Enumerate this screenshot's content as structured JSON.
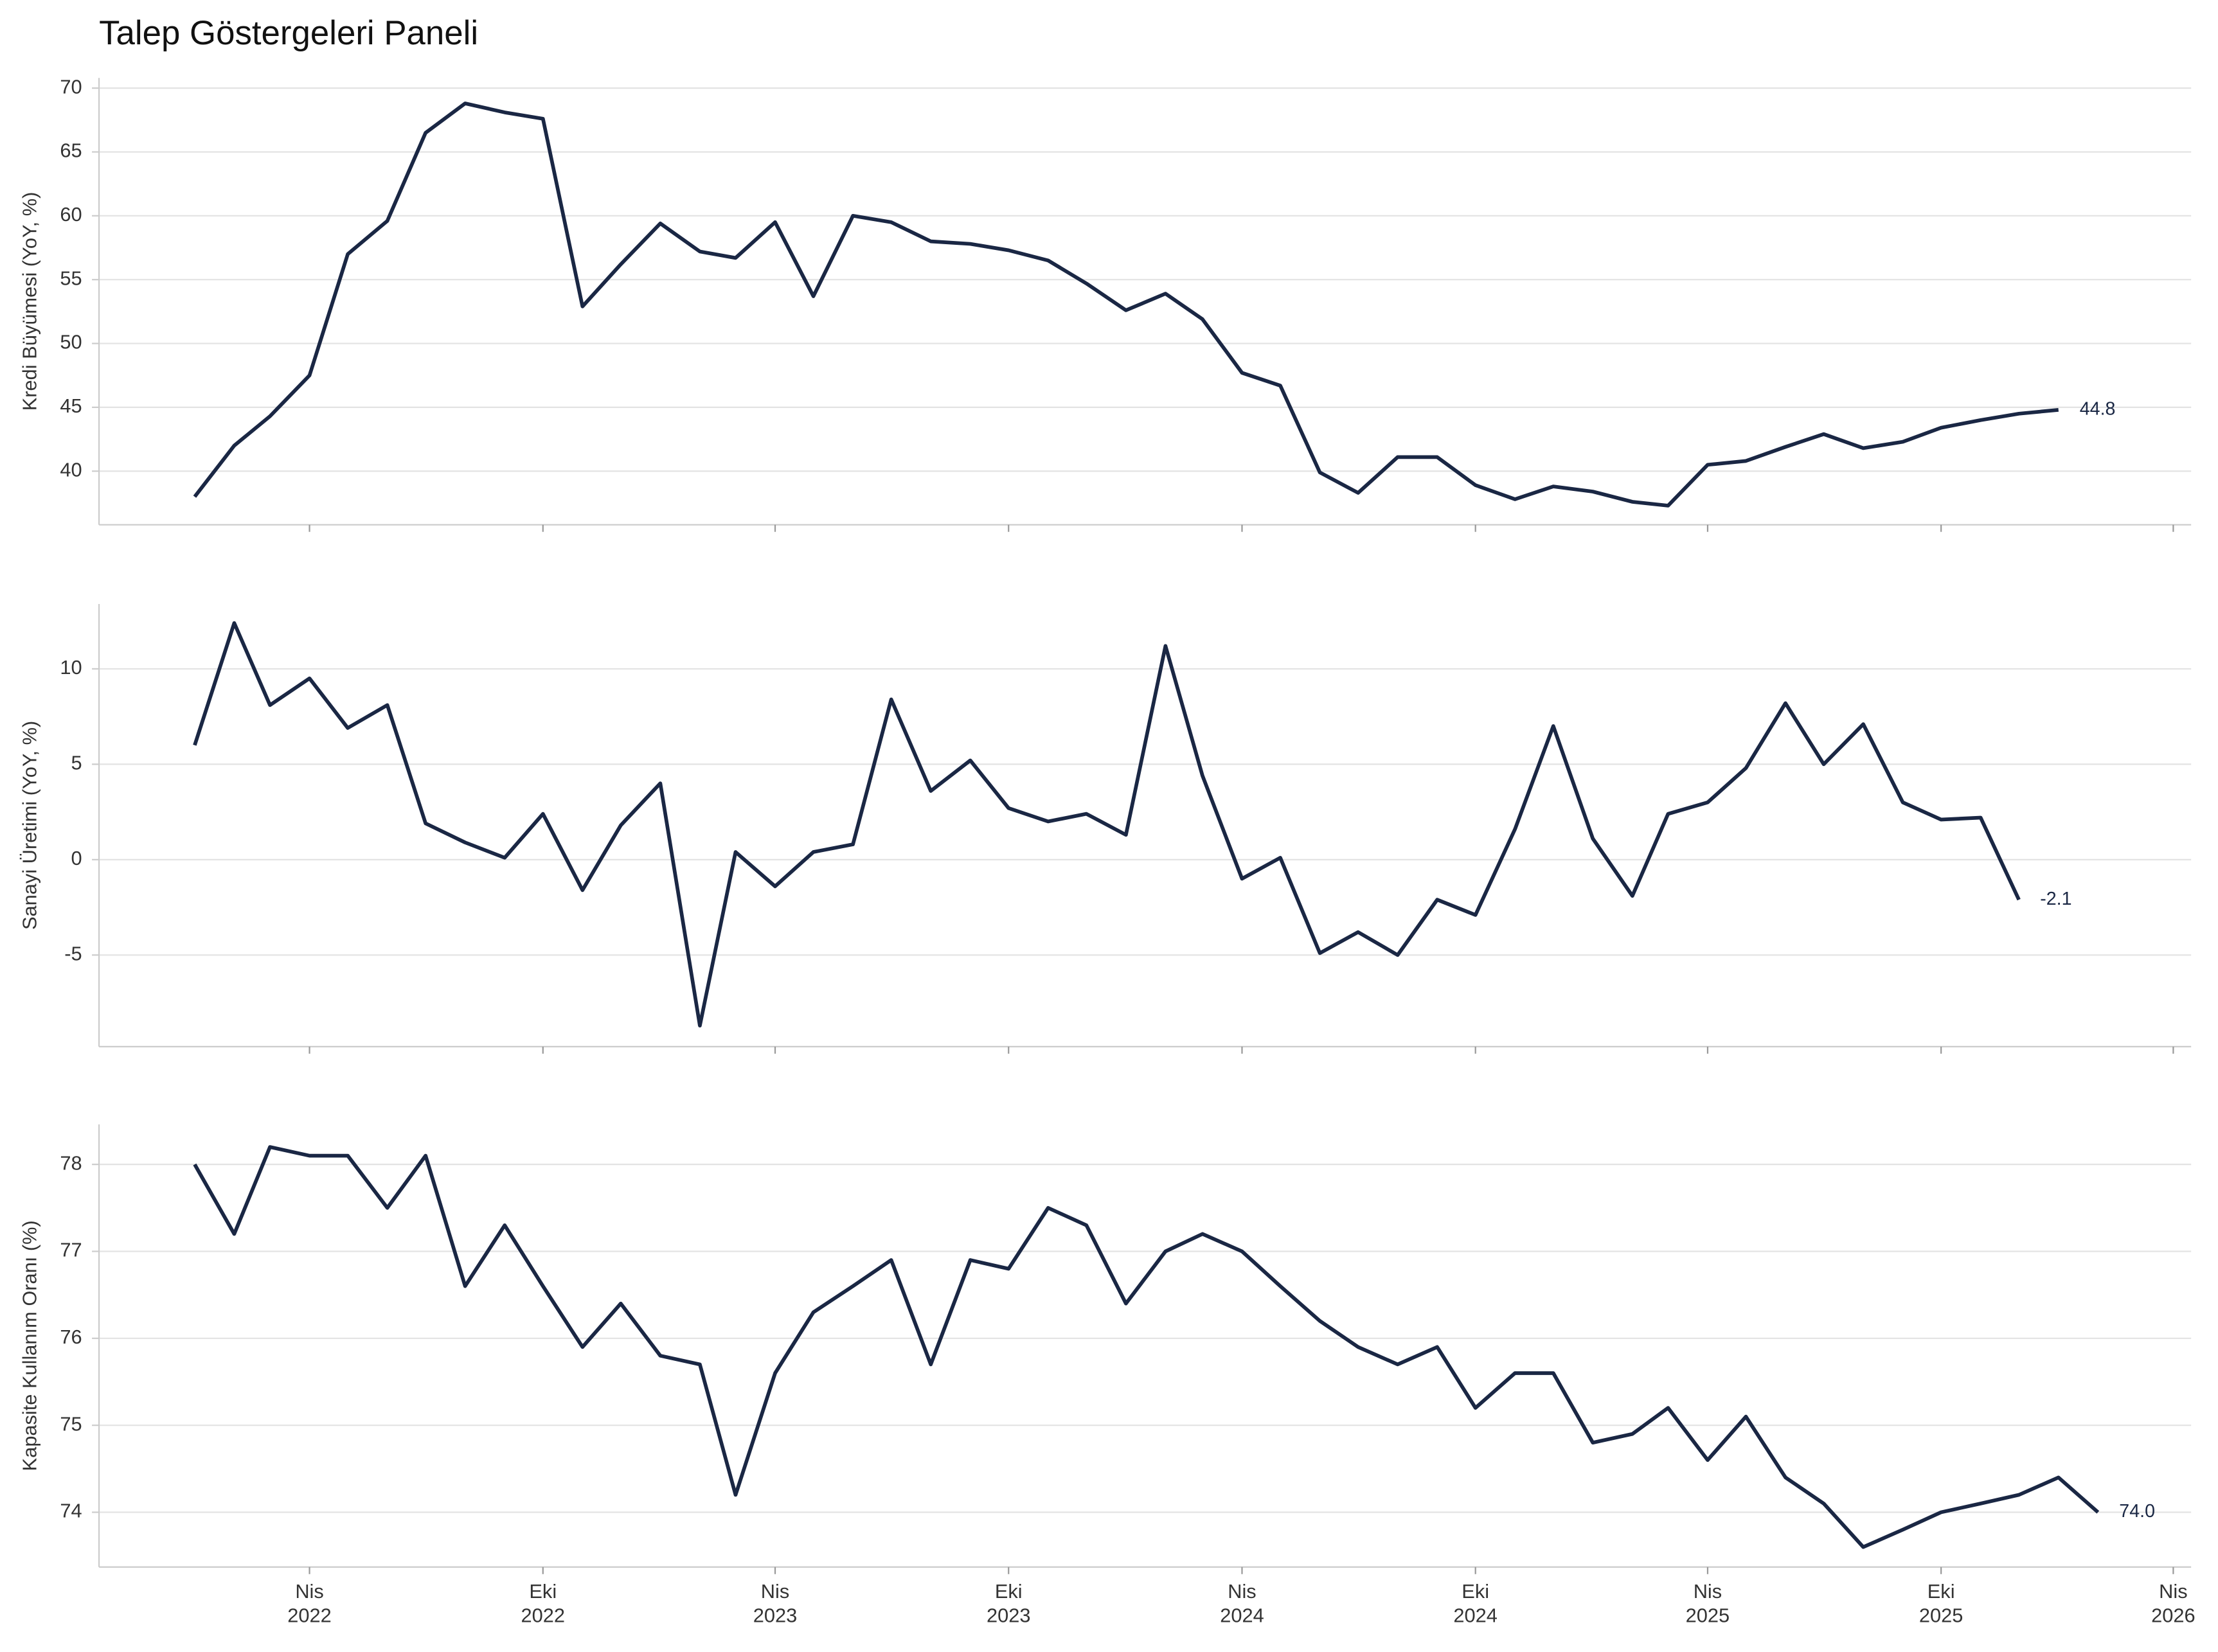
{
  "title": "Talep Göstergeleri Paneli",
  "chart_data": [
    {
      "type": "line",
      "ylabel": "Kredi Büyümesi (YoY, %)",
      "color": "#1a2744",
      "grid": true,
      "xlim": [
        "2021-10-18",
        "2026-04-15"
      ],
      "ylim": [
        35.8,
        70.8
      ],
      "yticks": [
        40,
        45,
        50,
        55,
        60,
        65,
        70
      ],
      "x": [
        "2022-01",
        "2022-02",
        "2022-03",
        "2022-04",
        "2022-05",
        "2022-06",
        "2022-07",
        "2022-08",
        "2022-09",
        "2022-10",
        "2022-11",
        "2022-12",
        "2023-01",
        "2023-02",
        "2023-03",
        "2023-04",
        "2023-05",
        "2023-06",
        "2023-07",
        "2023-08",
        "2023-09",
        "2023-10",
        "2023-11",
        "2023-12",
        "2024-01",
        "2024-02",
        "2024-03",
        "2024-04",
        "2024-05",
        "2024-06",
        "2024-07",
        "2024-08",
        "2024-09",
        "2024-10",
        "2024-11",
        "2024-12",
        "2025-01",
        "2025-02",
        "2025-03",
        "2025-04",
        "2025-05",
        "2025-06",
        "2025-07",
        "2025-08",
        "2025-09",
        "2025-10",
        "2025-11",
        "2025-12",
        "2026-01"
      ],
      "values": [
        38.0,
        42.0,
        44.3,
        47.5,
        57.0,
        59.6,
        66.5,
        68.8,
        68.1,
        67.6,
        52.9,
        56.2,
        59.4,
        57.2,
        56.7,
        59.5,
        53.7,
        60.0,
        59.5,
        58.0,
        57.8,
        57.3,
        56.5,
        54.7,
        52.6,
        53.9,
        51.9,
        47.7,
        46.7,
        39.9,
        38.3,
        41.1,
        41.1,
        38.9,
        37.8,
        38.8,
        38.4,
        37.6,
        37.3,
        40.5,
        40.8,
        41.9,
        42.9,
        41.8,
        42.3,
        43.4,
        44.0,
        44.5,
        44.8
      ],
      "value_labels": [
        null,
        null,
        null,
        null,
        null,
        null,
        null,
        null,
        null,
        null,
        null,
        null,
        null,
        null,
        null,
        null,
        null,
        null,
        null,
        null,
        null,
        null,
        null,
        null,
        null,
        null,
        null,
        null,
        null,
        null,
        null,
        null,
        null,
        null,
        null,
        null,
        null,
        null,
        null,
        null,
        null,
        null,
        null,
        null,
        null,
        null,
        null,
        null,
        "44.8"
      ]
    },
    {
      "type": "line",
      "ylabel": "Sanayi Üretimi (YoY, %)",
      "color": "#1a2744",
      "grid": true,
      "xlim": [
        "2021-10-18",
        "2026-04-15"
      ],
      "ylim": [
        -9.8,
        13.4
      ],
      "yticks": [
        -5,
        0,
        5,
        10
      ],
      "x": [
        "2022-01",
        "2022-02",
        "2022-03",
        "2022-04",
        "2022-05",
        "2022-06",
        "2022-07",
        "2022-08",
        "2022-09",
        "2022-10",
        "2022-11",
        "2022-12",
        "2023-01",
        "2023-02",
        "2023-03",
        "2023-04",
        "2023-05",
        "2023-06",
        "2023-07",
        "2023-08",
        "2023-09",
        "2023-10",
        "2023-11",
        "2023-12",
        "2024-01",
        "2024-02",
        "2024-03",
        "2024-04",
        "2024-05",
        "2024-06",
        "2024-07",
        "2024-08",
        "2024-09",
        "2024-10",
        "2024-11",
        "2024-12",
        "2025-01",
        "2025-02",
        "2025-03",
        "2025-04",
        "2025-05",
        "2025-06",
        "2025-07",
        "2025-08",
        "2025-09",
        "2025-10",
        "2025-11",
        "2025-12"
      ],
      "values": [
        6.0,
        12.4,
        8.1,
        9.5,
        6.9,
        8.1,
        1.9,
        0.9,
        0.1,
        2.4,
        -1.6,
        1.8,
        4.0,
        -8.7,
        0.4,
        -1.4,
        0.4,
        0.8,
        8.4,
        3.6,
        5.2,
        2.7,
        2.0,
        2.4,
        1.3,
        11.2,
        4.4,
        -1.0,
        0.1,
        -4.9,
        -3.8,
        -5.0,
        -2.1,
        -2.9,
        1.6,
        7.0,
        1.1,
        -1.9,
        2.4,
        3.0,
        4.8,
        8.2,
        5.0,
        7.1,
        3.0,
        2.1,
        2.2,
        -2.1
      ],
      "value_labels": [
        null,
        null,
        null,
        null,
        null,
        null,
        null,
        null,
        null,
        null,
        null,
        null,
        null,
        null,
        null,
        null,
        null,
        null,
        null,
        null,
        null,
        null,
        null,
        null,
        null,
        null,
        null,
        null,
        null,
        null,
        null,
        null,
        null,
        null,
        null,
        null,
        null,
        null,
        null,
        null,
        null,
        null,
        null,
        null,
        null,
        null,
        null,
        "-2.1"
      ]
    },
    {
      "type": "line",
      "ylabel": "Kapasite Kullanım Oranı (%)",
      "color": "#1a2744",
      "grid": true,
      "xlim": [
        "2021-10-18",
        "2026-04-15"
      ],
      "ylim": [
        73.37,
        78.46
      ],
      "yticks": [
        74,
        75,
        76,
        77,
        78
      ],
      "xticks": [
        {
          "value": "2022-04",
          "label": "Nis 2022"
        },
        {
          "value": "2022-10",
          "label": "Eki 2022"
        },
        {
          "value": "2023-04",
          "label": "Nis 2023"
        },
        {
          "value": "2023-10",
          "label": "Eki 2023"
        },
        {
          "value": "2024-04",
          "label": "Nis 2024"
        },
        {
          "value": "2024-10",
          "label": "Eki 2024"
        },
        {
          "value": "2025-04",
          "label": "Nis 2025"
        },
        {
          "value": "2025-10",
          "label": "Eki 2025"
        },
        {
          "value": "2026-04",
          "label": "Nis 2026"
        }
      ],
      "x": [
        "2022-01",
        "2022-02",
        "2022-03",
        "2022-04",
        "2022-05",
        "2022-06",
        "2022-07",
        "2022-08",
        "2022-09",
        "2022-10",
        "2022-11",
        "2022-12",
        "2023-01",
        "2023-02",
        "2023-03",
        "2023-04",
        "2023-05",
        "2023-06",
        "2023-07",
        "2023-08",
        "2023-09",
        "2023-10",
        "2023-11",
        "2023-12",
        "2024-01",
        "2024-02",
        "2024-03",
        "2024-04",
        "2024-05",
        "2024-06",
        "2024-07",
        "2024-08",
        "2024-09",
        "2024-10",
        "2024-11",
        "2024-12",
        "2025-01",
        "2025-02",
        "2025-03",
        "2025-04",
        "2025-05",
        "2025-06",
        "2025-07",
        "2025-08",
        "2025-09",
        "2025-10",
        "2025-11",
        "2025-12",
        "2026-01",
        "2026-02"
      ],
      "values": [
        78.0,
        77.2,
        78.2,
        78.1,
        78.1,
        77.5,
        78.1,
        76.6,
        77.3,
        76.6,
        75.9,
        76.4,
        75.8,
        75.7,
        74.2,
        75.6,
        76.3,
        76.6,
        76.9,
        75.7,
        76.9,
        76.8,
        77.5,
        77.3,
        76.4,
        77.0,
        77.2,
        77.0,
        76.6,
        76.2,
        75.9,
        75.7,
        75.9,
        75.2,
        75.6,
        75.6,
        74.8,
        74.9,
        75.2,
        74.6,
        75.1,
        74.4,
        74.1,
        73.6,
        73.8,
        74.0,
        74.1,
        74.2,
        74.4,
        74.0
      ],
      "value_labels": [
        null,
        null,
        null,
        null,
        null,
        null,
        null,
        null,
        null,
        null,
        null,
        null,
        null,
        null,
        null,
        null,
        null,
        null,
        null,
        null,
        null,
        null,
        null,
        null,
        null,
        null,
        null,
        null,
        null,
        null,
        null,
        null,
        null,
        null,
        null,
        null,
        null,
        null,
        null,
        null,
        null,
        null,
        null,
        null,
        null,
        null,
        null,
        null,
        null,
        "74.0"
      ]
    }
  ]
}
